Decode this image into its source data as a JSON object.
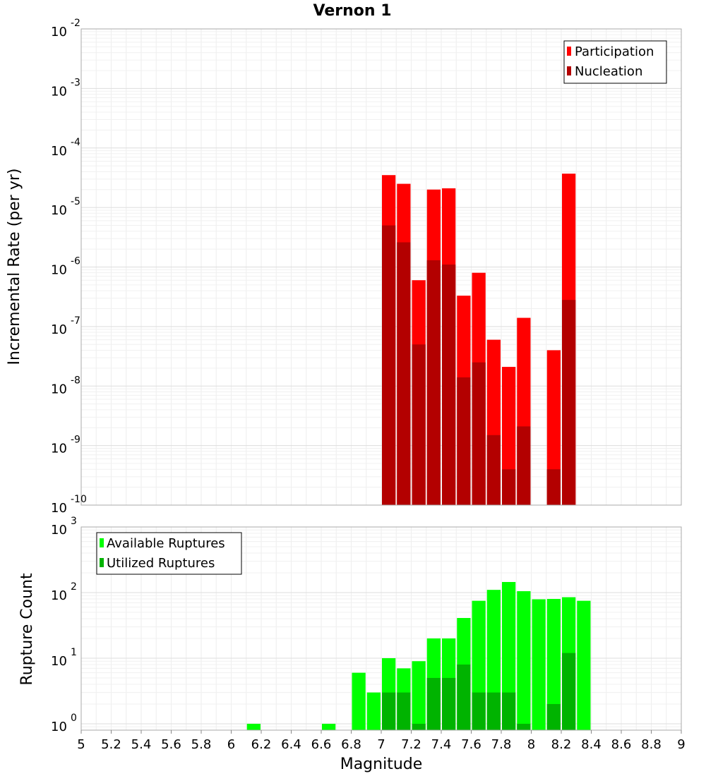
{
  "chart_data": [
    {
      "type": "bar",
      "title": "Vernon 1",
      "xlabel": "",
      "ylabel": "Incremental Rate (per yr)",
      "yscale": "log",
      "xlim": [
        5,
        9
      ],
      "ylim": [
        1e-10,
        0.01
      ],
      "ytick_exponents": [
        -10,
        -9,
        -8,
        -7,
        -6,
        -5,
        -4,
        -3,
        -2
      ],
      "legend": {
        "placement": "top-right",
        "entries": [
          "Participation",
          "Nucleation"
        ]
      },
      "colors": {
        "Participation": "#ff0000",
        "Nucleation": "#b30000"
      },
      "bar_width": 0.1,
      "x": [
        7.05,
        7.15,
        7.25,
        7.35,
        7.45,
        7.55,
        7.65,
        7.75,
        7.85,
        7.95,
        8.15,
        8.25
      ],
      "series": [
        {
          "name": "Participation",
          "values": [
            3.5e-05,
            2.5e-05,
            6e-07,
            2e-05,
            2.1e-05,
            3.3e-07,
            8e-07,
            6e-08,
            2.1e-08,
            1.4e-07,
            4e-08,
            3.7e-05
          ]
        },
        {
          "name": "Nucleation",
          "values": [
            5e-06,
            2.6e-06,
            5e-08,
            1.3e-06,
            1.1e-06,
            1.4e-08,
            2.5e-08,
            1.5e-09,
            4e-10,
            2.1e-09,
            4e-10,
            2.8e-07
          ]
        }
      ]
    },
    {
      "type": "bar",
      "title": "",
      "xlabel": "Magnitude",
      "ylabel": "Rupture Count",
      "yscale": "log",
      "xlim": [
        5,
        9
      ],
      "ylim": [
        0.8,
        1000
      ],
      "ytick_exponents": [
        0,
        1,
        2,
        3
      ],
      "xticks": [
        "5",
        "5.2",
        "5.4",
        "5.6",
        "5.8",
        "6",
        "6.2",
        "6.4",
        "6.6",
        "6.8",
        "7",
        "7.2",
        "7.4",
        "7.6",
        "7.8",
        "8",
        "8.2",
        "8.4",
        "8.6",
        "8.8",
        "9"
      ],
      "legend": {
        "placement": "top-left",
        "entries": [
          "Available Ruptures",
          "Utilized Ruptures"
        ]
      },
      "colors": {
        "Available Ruptures": "#00ff00",
        "Utilized Ruptures": "#00b300"
      },
      "bar_width": 0.1,
      "x": [
        6.15,
        6.65,
        6.85,
        6.95,
        7.05,
        7.15,
        7.25,
        7.35,
        7.45,
        7.55,
        7.65,
        7.75,
        7.85,
        7.95,
        8.05,
        8.15,
        8.25,
        8.35
      ],
      "series": [
        {
          "name": "Available Ruptures",
          "values": [
            1,
            1,
            6,
            3,
            10,
            7,
            9,
            20,
            20,
            41,
            75,
            110,
            145,
            105,
            79,
            80,
            85,
            75
          ]
        },
        {
          "name": "Utilized Ruptures",
          "values": [
            0,
            0,
            0,
            0,
            3,
            3,
            1,
            5,
            5,
            8,
            3,
            3,
            3,
            1,
            0,
            2,
            12,
            0
          ]
        }
      ]
    }
  ]
}
